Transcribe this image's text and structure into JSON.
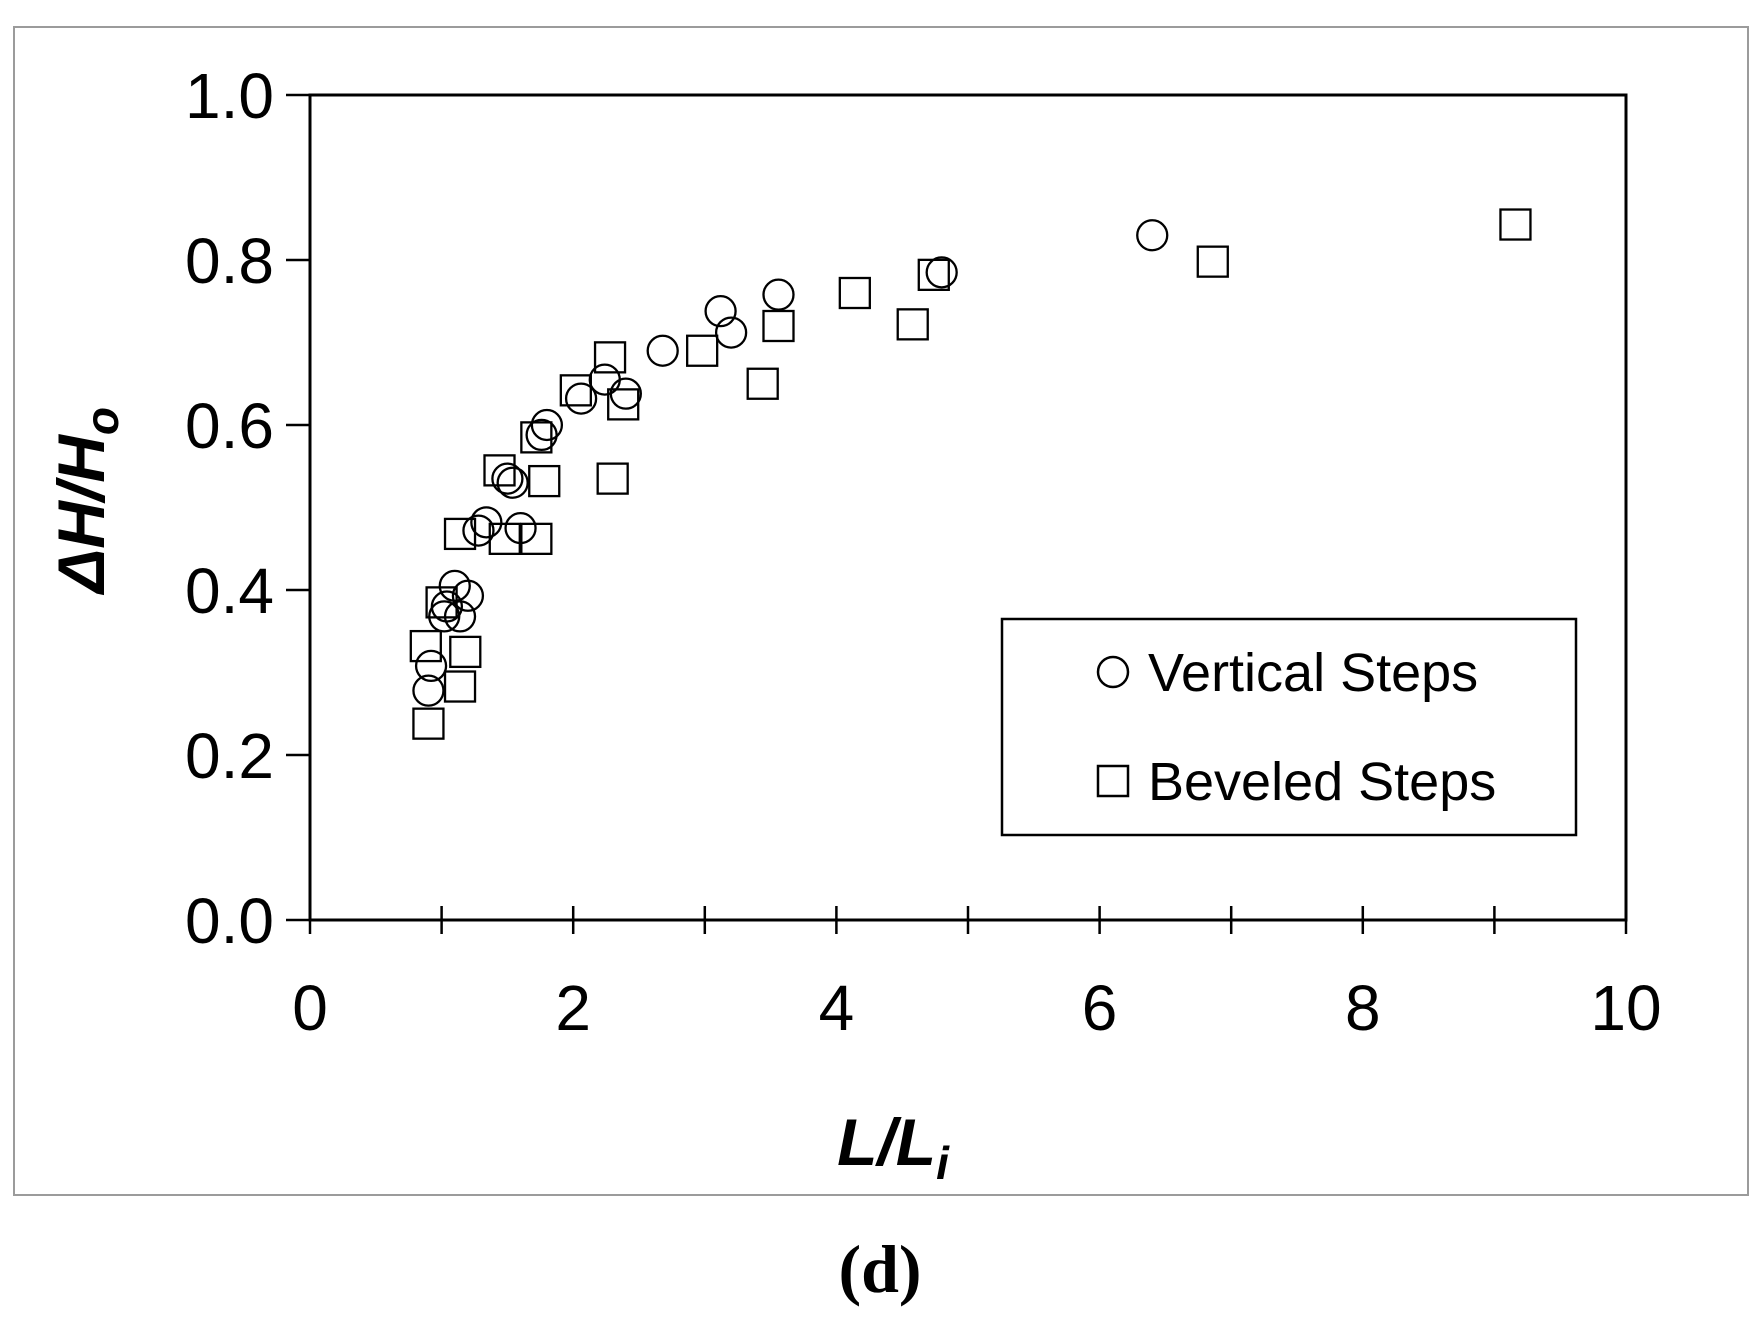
{
  "chart_data": {
    "type": "scatter",
    "xlabel": {
      "main": "L/L",
      "sub": "i"
    },
    "ylabel": {
      "main": "ΔH/H",
      "sub": "o"
    },
    "xlim": [
      0,
      10
    ],
    "ylim": [
      0,
      1.0
    ],
    "x_ticks": [
      0,
      2,
      4,
      6,
      8,
      10
    ],
    "x_tick_labels": [
      "0",
      "2",
      "4",
      "6",
      "8",
      "10"
    ],
    "x_minor_ticks": [
      1,
      3,
      5,
      7,
      9
    ],
    "y_ticks": [
      0,
      0.2,
      0.4,
      0.6,
      0.8,
      1.0
    ],
    "y_tick_labels": [
      "0.0",
      "0.2",
      "0.4",
      "0.6",
      "0.8",
      "1.0"
    ],
    "grid": false,
    "legend_position": "bottom-right",
    "panel_label": "(d)",
    "series": [
      {
        "name": "Vertical Steps",
        "marker": "circle",
        "points": [
          [
            0.9,
            0.278
          ],
          [
            0.92,
            0.308
          ],
          [
            1.02,
            0.368
          ],
          [
            1.04,
            0.38
          ],
          [
            1.1,
            0.405
          ],
          [
            1.14,
            0.368
          ],
          [
            1.2,
            0.393
          ],
          [
            1.28,
            0.472
          ],
          [
            1.34,
            0.482
          ],
          [
            1.5,
            0.535
          ],
          [
            1.54,
            0.53
          ],
          [
            1.6,
            0.475
          ],
          [
            1.76,
            0.588
          ],
          [
            1.8,
            0.6
          ],
          [
            2.06,
            0.632
          ],
          [
            2.24,
            0.655
          ],
          [
            2.4,
            0.638
          ],
          [
            2.68,
            0.69
          ],
          [
            3.12,
            0.738
          ],
          [
            3.2,
            0.712
          ],
          [
            3.56,
            0.758
          ],
          [
            4.8,
            0.785
          ],
          [
            6.4,
            0.83
          ]
        ]
      },
      {
        "name": "Beveled Steps",
        "marker": "square",
        "points": [
          [
            0.88,
            0.332
          ],
          [
            0.9,
            0.238
          ],
          [
            1.0,
            0.385
          ],
          [
            1.14,
            0.468
          ],
          [
            1.14,
            0.283
          ],
          [
            1.18,
            0.325
          ],
          [
            1.44,
            0.545
          ],
          [
            1.48,
            0.462
          ],
          [
            1.72,
            0.585
          ],
          [
            1.72,
            0.462
          ],
          [
            1.78,
            0.532
          ],
          [
            2.02,
            0.642
          ],
          [
            2.28,
            0.682
          ],
          [
            2.3,
            0.535
          ],
          [
            2.38,
            0.625
          ],
          [
            2.98,
            0.69
          ],
          [
            3.44,
            0.65
          ],
          [
            3.56,
            0.72
          ],
          [
            4.14,
            0.76
          ],
          [
            4.58,
            0.722
          ],
          [
            4.74,
            0.782
          ],
          [
            6.86,
            0.798
          ],
          [
            9.16,
            0.843
          ]
        ]
      }
    ]
  }
}
